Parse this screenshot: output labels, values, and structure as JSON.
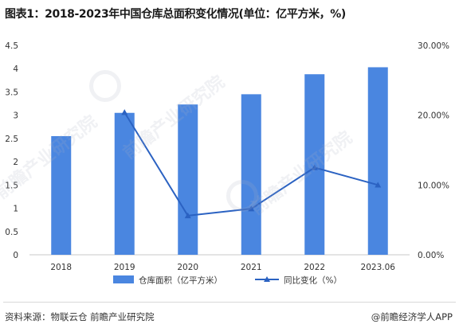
{
  "title": "图表1：2018-2023年中国仓库总面积变化情况(单位：亿平方米，%)",
  "source": "资料来源：物联云仓 前瞻产业研究院",
  "brand": "@前瞻经济学人APP",
  "watermark": "前瞻产业研究院",
  "colors": {
    "bar": "#4a86e0",
    "line": "#2b62c2",
    "axis": "#c9c9c9",
    "text": "#333333"
  },
  "chart_data": {
    "type": "bar",
    "categories": [
      "2018",
      "2019",
      "2020",
      "2021",
      "2022",
      "2023.06"
    ],
    "series": [
      {
        "name": "仓库面积（亿平方米）",
        "type": "bar",
        "axis": "left",
        "values": [
          2.55,
          3.05,
          3.23,
          3.45,
          3.88,
          4.03
        ]
      },
      {
        "name": "同比变化（%）",
        "type": "line",
        "axis": "right",
        "values": [
          null,
          20.4,
          5.6,
          6.6,
          12.5,
          10.0
        ]
      }
    ],
    "ylim_left": [
      0,
      4.5
    ],
    "yticks_left": [
      "0",
      "0.5",
      "1",
      "1.5",
      "2",
      "2.5",
      "3",
      "3.5",
      "4",
      "4.5"
    ],
    "ylim_right": [
      0,
      30
    ],
    "yticks_right": [
      "0.00%",
      "10.00%",
      "20.00%",
      "30.00%"
    ],
    "legend_position": "bottom",
    "grid": false
  }
}
